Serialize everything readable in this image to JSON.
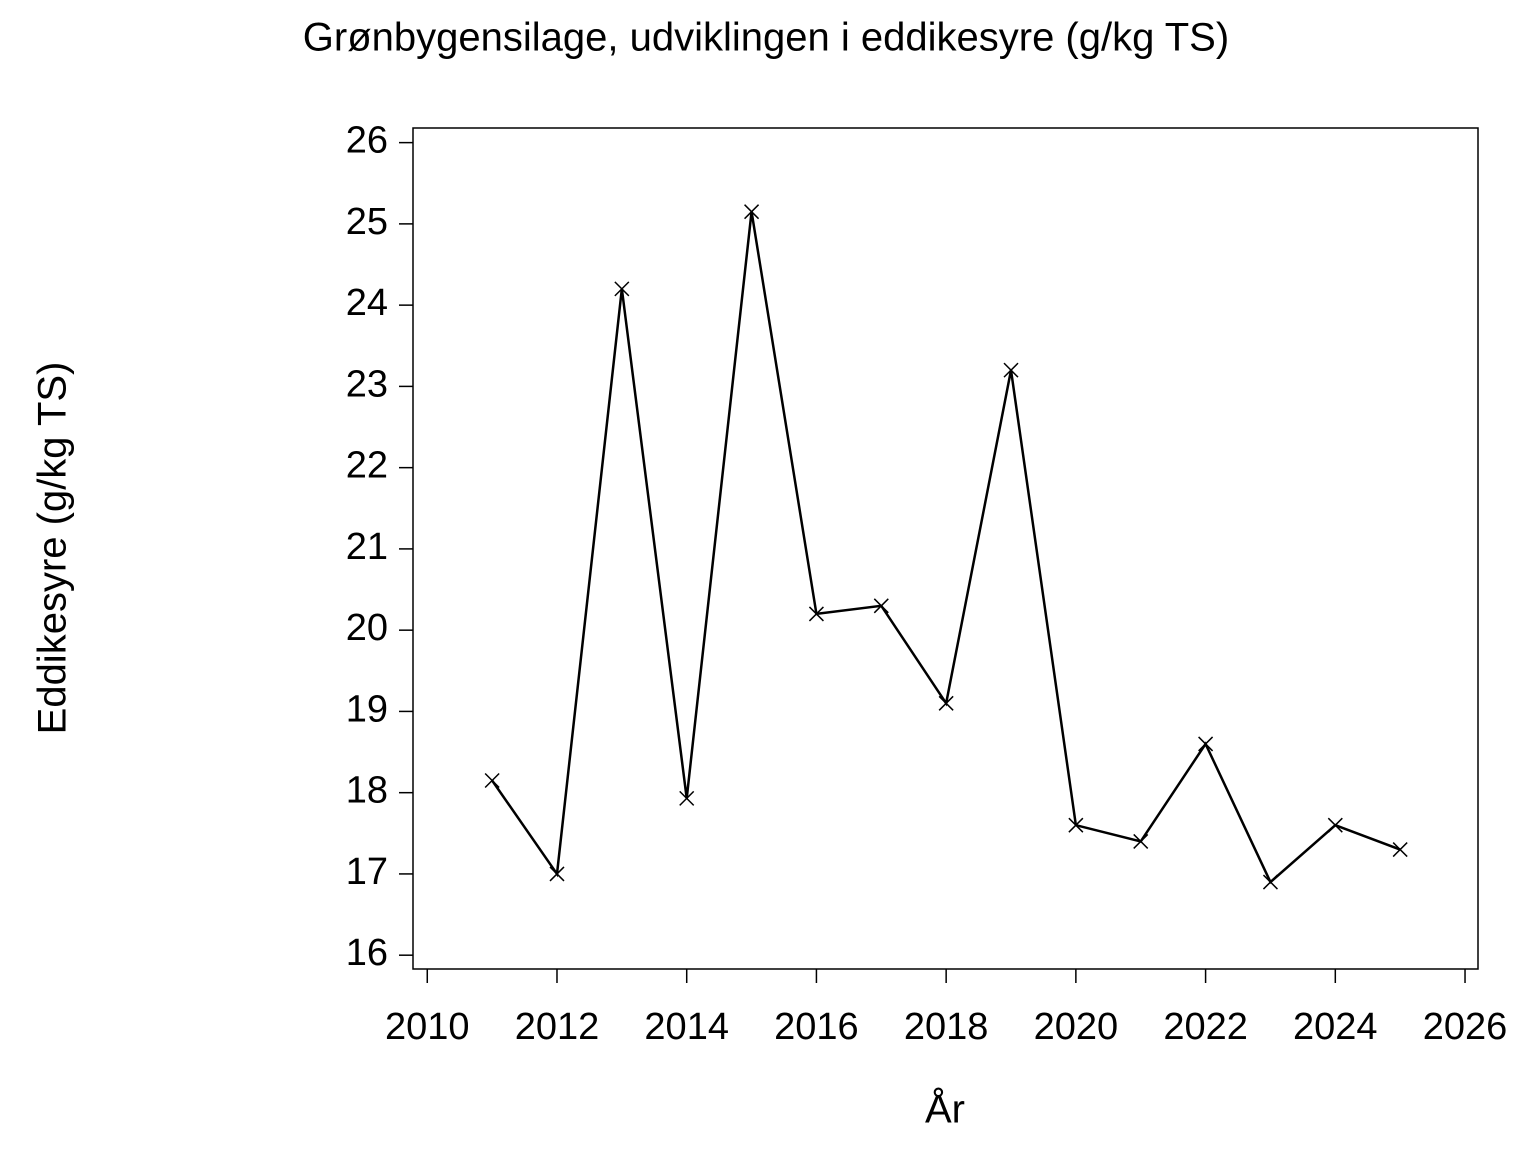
{
  "chart_data": {
    "type": "line",
    "title": "Grønbygensilage,  udviklingen  i  eddikesyre  (g/kg  TS)",
    "x_label": "År",
    "y_label": "Eddikesyre  (g/kg  TS)",
    "x": [
      2011,
      2012,
      2013,
      2014,
      2015,
      2016,
      2017,
      2018,
      2019,
      2020,
      2021,
      2022,
      2023,
      2024,
      2025
    ],
    "series": [
      {
        "name": "Eddikesyre",
        "color": "#000000",
        "values": [
          18.15,
          17.0,
          24.2,
          17.93,
          25.15,
          20.2,
          20.3,
          19.1,
          23.2,
          17.6,
          17.4,
          18.6,
          16.9,
          17.6,
          17.3
        ]
      }
    ],
    "marker": "x",
    "xlim": [
      2009.78,
      2026.2
    ],
    "xticks": [
      2010,
      2012,
      2014,
      2016,
      2018,
      2020,
      2022,
      2024,
      2026
    ],
    "ylim": [
      15.83,
      26.18
    ],
    "yticks": [
      16,
      17,
      18,
      19,
      20,
      21,
      22,
      23,
      24,
      25,
      26
    ],
    "grid": false
  }
}
